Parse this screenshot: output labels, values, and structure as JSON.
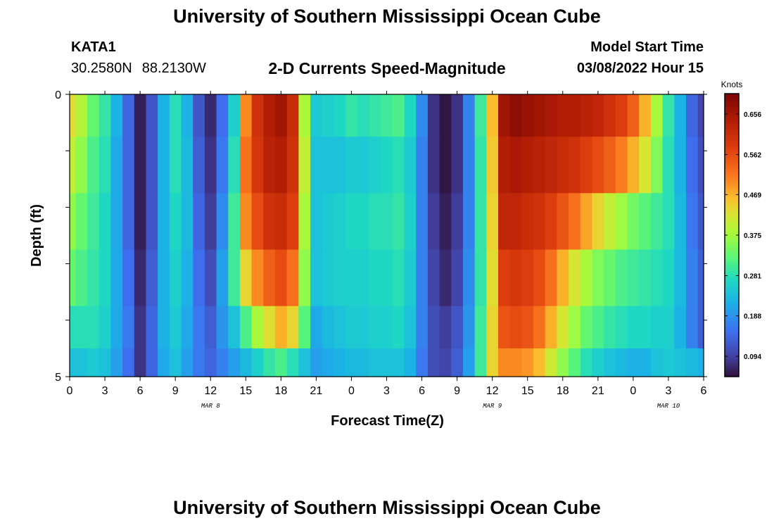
{
  "header": {
    "title": "University of Southern Mississippi Ocean Cube",
    "station": "KATA1",
    "lat": "30.2580N",
    "lon": "88.2130W",
    "product": "2-D Currents Speed-Magnitude",
    "model_start_label": "Model Start Time",
    "model_start_value": "03/08/2022 Hour 15"
  },
  "footer": {
    "title": "University of Southern Mississippi Ocean Cube"
  },
  "chart_data": {
    "type": "heatmap",
    "xlabel": "Forecast Time(Z)",
    "ylabel": "Depth (ft)",
    "x_hours_range": [
      0,
      54
    ],
    "x_tick_labels": [
      "0",
      "3",
      "6",
      "9",
      "12",
      "15",
      "18",
      "21",
      "0",
      "3",
      "6",
      "9",
      "12",
      "15",
      "18",
      "21",
      "0",
      "3",
      "6"
    ],
    "x_tick_hours": [
      0,
      3,
      6,
      9,
      12,
      15,
      18,
      21,
      24,
      27,
      30,
      33,
      36,
      39,
      42,
      45,
      48,
      51,
      54
    ],
    "date_labels": [
      {
        "text": "MAR 8",
        "hour": 12
      },
      {
        "text": "MAR 9",
        "hour": 36
      },
      {
        "text": "MAR 10",
        "hour": 51
      }
    ],
    "y_range": [
      0,
      5
    ],
    "y_tick_labels": [
      "0",
      "5"
    ],
    "depth_layers": [
      0.25,
      1.25,
      2.25,
      3.25,
      4.25,
      4.75
    ],
    "colorbar": {
      "unit": "Knots",
      "min": 0.047,
      "max": 0.703,
      "ticks": [
        0.094,
        0.188,
        0.281,
        0.375,
        0.469,
        0.562,
        0.656
      ]
    },
    "time_hours": [
      0,
      1,
      2,
      3,
      4,
      5,
      6,
      7,
      8,
      9,
      10,
      11,
      12,
      13,
      14,
      15,
      16,
      17,
      18,
      19,
      20,
      21,
      22,
      23,
      24,
      25,
      26,
      27,
      28,
      29,
      30,
      31,
      32,
      33,
      34,
      35,
      36,
      37,
      38,
      39,
      40,
      41,
      42,
      43,
      44,
      45,
      46,
      47,
      48,
      49,
      50,
      51,
      52,
      53,
      54
    ],
    "speed_knots": [
      [
        0.43,
        0.39,
        0.33,
        0.29,
        0.22,
        0.14,
        0.06,
        0.12,
        0.22,
        0.28,
        0.22,
        0.12,
        0.07,
        0.15,
        0.26,
        0.5,
        0.6,
        0.64,
        0.66,
        0.61,
        0.38,
        0.25,
        0.26,
        0.27,
        0.29,
        0.28,
        0.29,
        0.3,
        0.31,
        0.27,
        0.18,
        0.08,
        0.05,
        0.08,
        0.17,
        0.3,
        0.46,
        0.66,
        0.68,
        0.67,
        0.66,
        0.65,
        0.64,
        0.64,
        0.63,
        0.62,
        0.6,
        0.58,
        0.54,
        0.47,
        0.38,
        0.29,
        0.22,
        0.14,
        0.1
      ],
      [
        0.4,
        0.36,
        0.31,
        0.28,
        0.21,
        0.14,
        0.06,
        0.12,
        0.22,
        0.28,
        0.23,
        0.13,
        0.08,
        0.16,
        0.28,
        0.52,
        0.59,
        0.63,
        0.64,
        0.6,
        0.4,
        0.24,
        0.24,
        0.24,
        0.25,
        0.25,
        0.26,
        0.27,
        0.28,
        0.25,
        0.17,
        0.08,
        0.05,
        0.08,
        0.17,
        0.29,
        0.45,
        0.64,
        0.65,
        0.64,
        0.63,
        0.62,
        0.61,
        0.6,
        0.58,
        0.56,
        0.54,
        0.51,
        0.47,
        0.42,
        0.35,
        0.28,
        0.22,
        0.15,
        0.11
      ],
      [
        0.36,
        0.33,
        0.3,
        0.27,
        0.21,
        0.14,
        0.06,
        0.12,
        0.22,
        0.27,
        0.23,
        0.14,
        0.09,
        0.18,
        0.3,
        0.5,
        0.56,
        0.6,
        0.61,
        0.58,
        0.38,
        0.24,
        0.25,
        0.26,
        0.27,
        0.27,
        0.28,
        0.28,
        0.29,
        0.26,
        0.17,
        0.09,
        0.06,
        0.09,
        0.17,
        0.29,
        0.44,
        0.62,
        0.62,
        0.61,
        0.6,
        0.58,
        0.55,
        0.52,
        0.48,
        0.44,
        0.4,
        0.37,
        0.34,
        0.32,
        0.3,
        0.28,
        0.23,
        0.16,
        0.12
      ],
      [
        0.33,
        0.31,
        0.29,
        0.27,
        0.21,
        0.15,
        0.07,
        0.13,
        0.22,
        0.26,
        0.22,
        0.15,
        0.11,
        0.2,
        0.3,
        0.44,
        0.5,
        0.54,
        0.56,
        0.52,
        0.36,
        0.24,
        0.25,
        0.26,
        0.26,
        0.26,
        0.27,
        0.27,
        0.28,
        0.25,
        0.17,
        0.1,
        0.07,
        0.1,
        0.18,
        0.29,
        0.43,
        0.58,
        0.59,
        0.58,
        0.56,
        0.52,
        0.47,
        0.42,
        0.38,
        0.35,
        0.33,
        0.31,
        0.3,
        0.29,
        0.28,
        0.27,
        0.23,
        0.17,
        0.13
      ],
      [
        0.28,
        0.28,
        0.28,
        0.26,
        0.21,
        0.16,
        0.08,
        0.14,
        0.22,
        0.25,
        0.21,
        0.16,
        0.13,
        0.19,
        0.24,
        0.31,
        0.38,
        0.43,
        0.47,
        0.44,
        0.32,
        0.21,
        0.23,
        0.24,
        0.25,
        0.25,
        0.26,
        0.26,
        0.27,
        0.24,
        0.17,
        0.11,
        0.09,
        0.12,
        0.19,
        0.3,
        0.44,
        0.55,
        0.56,
        0.55,
        0.52,
        0.47,
        0.42,
        0.37,
        0.33,
        0.31,
        0.29,
        0.28,
        0.27,
        0.27,
        0.26,
        0.26,
        0.22,
        0.17,
        0.13
      ],
      [
        0.24,
        0.24,
        0.25,
        0.24,
        0.2,
        0.15,
        0.08,
        0.14,
        0.21,
        0.24,
        0.2,
        0.16,
        0.14,
        0.17,
        0.2,
        0.23,
        0.26,
        0.29,
        0.31,
        0.28,
        0.24,
        0.2,
        0.21,
        0.22,
        0.23,
        0.23,
        0.24,
        0.24,
        0.24,
        0.22,
        0.16,
        0.11,
        0.1,
        0.13,
        0.2,
        0.3,
        0.44,
        0.5,
        0.5,
        0.49,
        0.46,
        0.41,
        0.36,
        0.32,
        0.28,
        0.26,
        0.24,
        0.23,
        0.22,
        0.22,
        0.24,
        0.25,
        0.24,
        0.23,
        0.22
      ]
    ]
  }
}
